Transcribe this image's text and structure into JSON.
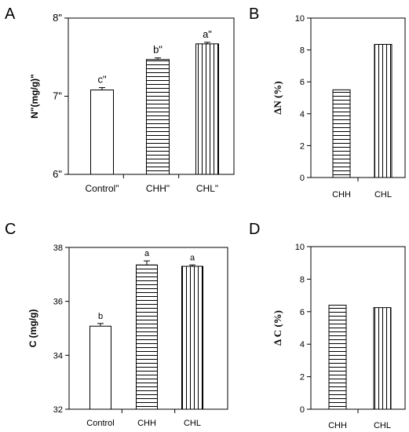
{
  "panels": [
    {
      "letter": "A",
      "ylabel": "N\"(mg/g)\"",
      "yticks": [
        "6\"",
        "7\"",
        "8\""
      ],
      "ylim": [
        6,
        8
      ],
      "categories": [
        "Control\"",
        "CHH\"",
        "CHL\""
      ]
    },
    {
      "letter": "B",
      "ylabel": "ΔN (%)",
      "yticks": [
        "0",
        "2",
        "4",
        "6",
        "8",
        "10"
      ],
      "ylim": [
        0,
        10
      ],
      "categories": [
        "CHH",
        "CHL"
      ]
    },
    {
      "letter": "C",
      "ylabel": "C (mg/g)",
      "yticks": [
        "32",
        "34",
        "36",
        "38"
      ],
      "ylim": [
        32,
        38
      ],
      "categories": [
        "Control",
        "CHH",
        "CHL"
      ]
    },
    {
      "letter": "D",
      "ylabel": "Δ C (%)",
      "yticks": [
        "0",
        "2",
        "4",
        "6",
        "8",
        "10"
      ],
      "ylim": [
        0,
        10
      ],
      "categories": [
        "CHH",
        "CHL"
      ]
    }
  ],
  "chart_data": [
    {
      "type": "bar",
      "title": "",
      "ylabel": "N\"(mg/g)\"",
      "ylim": [
        6,
        8
      ],
      "categories": [
        "Control\"",
        "CHH\"",
        "CHL\""
      ],
      "values": [
        7.08,
        7.47,
        7.67
      ],
      "errors": [
        0.03,
        0.02,
        0.02
      ],
      "significance": [
        "c\"",
        "b\"",
        "a\""
      ],
      "patterns": [
        "none",
        "horizontal",
        "vertical"
      ]
    },
    {
      "type": "bar",
      "title": "",
      "ylabel": "ΔN (%)",
      "ylim": [
        0,
        10
      ],
      "categories": [
        "CHH",
        "CHL"
      ],
      "values": [
        5.5,
        8.35
      ],
      "patterns": [
        "horizontal",
        "vertical"
      ]
    },
    {
      "type": "bar",
      "title": "",
      "ylabel": "C (mg/g)",
      "ylim": [
        32,
        38
      ],
      "categories": [
        "Control",
        "CHH",
        "CHL"
      ],
      "values": [
        35.08,
        37.35,
        37.3
      ],
      "errors": [
        0.1,
        0.15,
        0.05
      ],
      "significance": [
        "b",
        "a",
        "a"
      ],
      "patterns": [
        "none",
        "horizontal",
        "vertical"
      ]
    },
    {
      "type": "bar",
      "title": "",
      "ylabel": "Δ C (%)",
      "ylim": [
        0,
        10
      ],
      "categories": [
        "CHH",
        "CHL"
      ],
      "values": [
        6.4,
        6.25
      ],
      "patterns": [
        "horizontal",
        "vertical"
      ]
    }
  ]
}
